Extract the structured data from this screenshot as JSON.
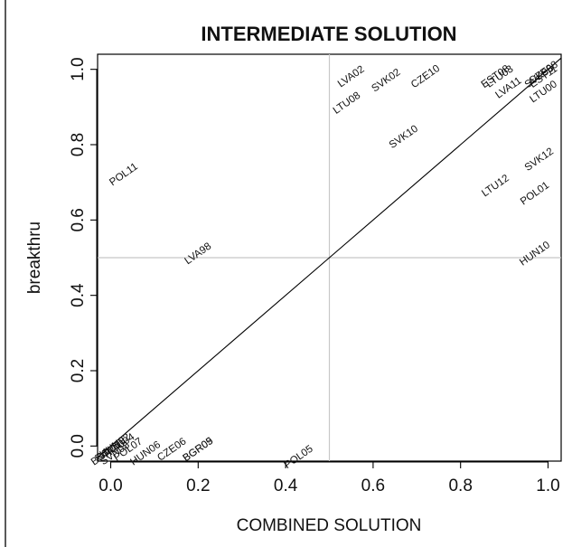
{
  "chart_data": {
    "type": "scatter",
    "title": "INTERMEDIATE SOLUTION",
    "xlabel": "COMBINED SOLUTION",
    "ylabel": "breakthru",
    "xlim": [
      -0.03,
      1.03
    ],
    "ylim": [
      -0.04,
      1.04
    ],
    "xticks": [
      0.0,
      0.2,
      0.4,
      0.6,
      0.8,
      1.0
    ],
    "yticks": [
      0.0,
      0.2,
      0.4,
      0.6,
      0.8,
      1.0
    ],
    "xtick_labels": [
      "0.0",
      "0.2",
      "0.4",
      "0.6",
      "0.8",
      "1.0"
    ],
    "ytick_labels": [
      "0.0",
      "0.2",
      "0.4",
      "0.6",
      "0.8",
      "1.0"
    ],
    "reference_lines": {
      "vertical_x": 0.5,
      "horizontal_y": 0.5,
      "diagonal": true
    },
    "label_rotation_deg": -35,
    "points": [
      {
        "label": "POL11",
        "x": 0.03,
        "y": 0.72
      },
      {
        "label": "LVA98",
        "x": 0.2,
        "y": 0.51
      },
      {
        "label": "LVA02",
        "x": 0.55,
        "y": 0.98
      },
      {
        "label": "LTU08",
        "x": 0.54,
        "y": 0.91
      },
      {
        "label": "SVK02",
        "x": 0.63,
        "y": 0.97
      },
      {
        "label": "CZE10",
        "x": 0.72,
        "y": 0.98
      },
      {
        "label": "SVK10",
        "x": 0.67,
        "y": 0.82
      },
      {
        "label": "EST08",
        "x": 0.88,
        "y": 0.98
      },
      {
        "label": "LTU03",
        "x": 0.89,
        "y": 0.98
      },
      {
        "label": "LVA11",
        "x": 0.91,
        "y": 0.95
      },
      {
        "label": "SVK98",
        "x": 0.98,
        "y": 0.98
      },
      {
        "label": "CZE98",
        "x": 0.99,
        "y": 0.99
      },
      {
        "label": "EST11",
        "x": 0.99,
        "y": 0.98
      },
      {
        "label": "LTU00",
        "x": 0.99,
        "y": 0.94
      },
      {
        "label": "SVK12",
        "x": 0.98,
        "y": 0.76
      },
      {
        "label": "LTU12",
        "x": 0.88,
        "y": 0.69
      },
      {
        "label": "POL01",
        "x": 0.97,
        "y": 0.67
      },
      {
        "label": "HUN10",
        "x": 0.97,
        "y": 0.51
      },
      {
        "label": "POL05",
        "x": 0.43,
        "y": -0.03
      },
      {
        "label": "CZE06",
        "x": 0.14,
        "y": -0.01
      },
      {
        "label": "BGR05",
        "x": 0.2,
        "y": -0.01
      },
      {
        "label": "BGR09",
        "x": 0.2,
        "y": -0.01
      },
      {
        "label": "HUN06",
        "x": 0.08,
        "y": -0.02
      },
      {
        "label": "POL07",
        "x": 0.04,
        "y": -0.01
      },
      {
        "label": "HUN02",
        "x": 0.01,
        "y": 0.0
      },
      {
        "label": "ROU04",
        "x": 0.02,
        "y": 0.0
      },
      {
        "label": "ROU08",
        "x": 0.0,
        "y": -0.01
      },
      {
        "label": "BGR01",
        "x": -0.01,
        "y": -0.02
      },
      {
        "label": "SVN08",
        "x": 0.01,
        "y": -0.02
      }
    ]
  }
}
